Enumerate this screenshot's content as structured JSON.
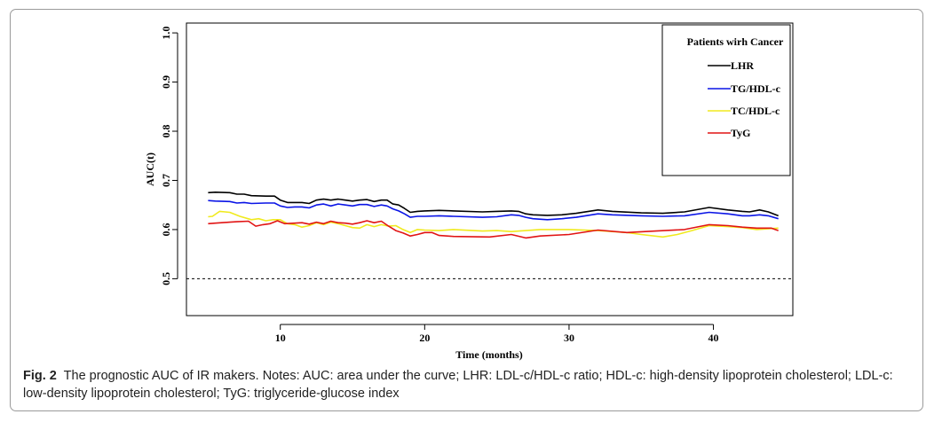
{
  "chart_data": {
    "type": "line",
    "title": "",
    "xlabel": "Time (months)",
    "ylabel": "AUC(t)",
    "xlim": [
      3.5,
      45.5
    ],
    "ylim": [
      0.425,
      1.02
    ],
    "xticks": [
      "10",
      "20",
      "30",
      "40"
    ],
    "yticks": [
      "0.5",
      "0.6",
      "0.7",
      "0.8",
      "0.9",
      "1.0"
    ],
    "reference_line": {
      "y": 0.5,
      "style": "dashed"
    },
    "legend": {
      "title": "Patients wirh Cancer",
      "position": "top-right"
    },
    "series": [
      {
        "name": "LHR",
        "color": "#000000",
        "x": [
          5,
          5.5,
          6.5,
          7,
          7.5,
          8,
          9,
          9.6,
          10,
          10.5,
          11,
          11.5,
          12,
          12.5,
          13,
          13.5,
          14,
          14.5,
          15,
          15.5,
          16,
          16.5,
          17,
          17.4,
          17.8,
          18.2,
          18.6,
          19,
          19.5,
          20,
          21,
          22,
          24,
          25,
          26,
          26.5,
          27,
          27.5,
          28.5,
          29.5,
          30.5,
          32,
          33,
          35,
          36.5,
          38,
          39.7,
          41,
          42,
          42.5,
          43.2,
          43.8,
          44.5
        ],
        "y": [
          0.675,
          0.676,
          0.675,
          0.672,
          0.672,
          0.669,
          0.668,
          0.668,
          0.66,
          0.655,
          0.655,
          0.655,
          0.653,
          0.66,
          0.662,
          0.66,
          0.662,
          0.66,
          0.658,
          0.66,
          0.661,
          0.657,
          0.66,
          0.66,
          0.652,
          0.65,
          0.643,
          0.635,
          0.637,
          0.638,
          0.639,
          0.638,
          0.636,
          0.637,
          0.638,
          0.637,
          0.632,
          0.63,
          0.629,
          0.63,
          0.633,
          0.64,
          0.637,
          0.634,
          0.633,
          0.636,
          0.645,
          0.64,
          0.637,
          0.636,
          0.64,
          0.636,
          0.628
        ]
      },
      {
        "name": "TG/HDL-c",
        "color": "#0a14e6",
        "x": [
          5,
          5.5,
          6.5,
          7,
          7.5,
          8,
          9,
          9.6,
          10,
          10.5,
          11,
          11.5,
          12,
          12.5,
          13,
          13.5,
          14,
          14.5,
          15,
          15.5,
          16,
          16.5,
          17,
          17.4,
          17.8,
          18.2,
          18.6,
          19,
          19.5,
          20,
          21,
          22,
          24,
          25,
          26,
          26.5,
          27,
          27.5,
          28.5,
          29.5,
          30.5,
          32,
          33,
          35,
          36.5,
          38,
          39.7,
          41,
          42,
          42.5,
          43.2,
          43.8,
          44.5
        ],
        "y": [
          0.659,
          0.658,
          0.657,
          0.654,
          0.655,
          0.653,
          0.654,
          0.654,
          0.648,
          0.645,
          0.646,
          0.646,
          0.644,
          0.65,
          0.652,
          0.648,
          0.652,
          0.65,
          0.648,
          0.651,
          0.651,
          0.647,
          0.65,
          0.648,
          0.642,
          0.638,
          0.632,
          0.625,
          0.627,
          0.627,
          0.628,
          0.627,
          0.625,
          0.626,
          0.63,
          0.629,
          0.625,
          0.622,
          0.62,
          0.622,
          0.625,
          0.632,
          0.63,
          0.628,
          0.627,
          0.628,
          0.635,
          0.632,
          0.628,
          0.628,
          0.63,
          0.628,
          0.622
        ]
      },
      {
        "name": "TC/HDL-c",
        "color": "#f0ea1e",
        "x": [
          5,
          5.3,
          5.8,
          6.5,
          7.2,
          8,
          8.5,
          9,
          9.5,
          10,
          10.5,
          11,
          11.5,
          12,
          12.5,
          13,
          13.5,
          14,
          14.5,
          15,
          15.5,
          16,
          16.5,
          17,
          17.5,
          18,
          18.5,
          19,
          19.5,
          20,
          21,
          22,
          24,
          25,
          26,
          27,
          28,
          30,
          32,
          34,
          35,
          36.5,
          37.5,
          38.5,
          39.7,
          41,
          42,
          43,
          44,
          44.5
        ],
        "y": [
          0.626,
          0.627,
          0.637,
          0.635,
          0.627,
          0.62,
          0.622,
          0.618,
          0.62,
          0.62,
          0.612,
          0.61,
          0.605,
          0.608,
          0.614,
          0.61,
          0.615,
          0.612,
          0.608,
          0.604,
          0.603,
          0.61,
          0.606,
          0.61,
          0.607,
          0.608,
          0.6,
          0.594,
          0.6,
          0.599,
          0.598,
          0.6,
          0.597,
          0.598,
          0.596,
          0.598,
          0.6,
          0.6,
          0.598,
          0.594,
          0.59,
          0.585,
          0.59,
          0.598,
          0.608,
          0.606,
          0.604,
          0.6,
          0.602,
          0.603
        ]
      },
      {
        "name": "TyG",
        "color": "#e11414",
        "x": [
          5,
          5.5,
          6.5,
          7,
          7.8,
          8.3,
          8.8,
          9.3,
          9.8,
          10.3,
          11,
          11.5,
          12,
          12.5,
          13,
          13.5,
          14,
          14.5,
          15,
          15.5,
          16,
          16.5,
          17,
          17.5,
          18,
          18.5,
          19,
          19.5,
          20,
          20.5,
          21,
          22,
          24.5,
          26,
          27,
          28,
          30,
          32,
          34,
          36,
          38,
          39.7,
          41,
          42,
          43,
          44,
          44.5
        ],
        "y": [
          0.612,
          0.613,
          0.615,
          0.616,
          0.617,
          0.607,
          0.61,
          0.612,
          0.618,
          0.612,
          0.613,
          0.614,
          0.611,
          0.615,
          0.612,
          0.617,
          0.614,
          0.613,
          0.611,
          0.614,
          0.618,
          0.614,
          0.617,
          0.607,
          0.598,
          0.593,
          0.587,
          0.59,
          0.594,
          0.594,
          0.588,
          0.586,
          0.585,
          0.59,
          0.583,
          0.587,
          0.59,
          0.599,
          0.594,
          0.597,
          0.6,
          0.61,
          0.608,
          0.605,
          0.603,
          0.603,
          0.598
        ]
      }
    ]
  },
  "caption": {
    "label": "Fig. 2",
    "text": "The prognostic AUC of IR makers. Notes: AUC: area under the curve; LHR: LDL-c/HDL-c ratio; HDL-c: high-density lipoprotein cholesterol; LDL-c: low-density lipoprotein cholesterol; TyG: triglyceride-glucose index"
  }
}
